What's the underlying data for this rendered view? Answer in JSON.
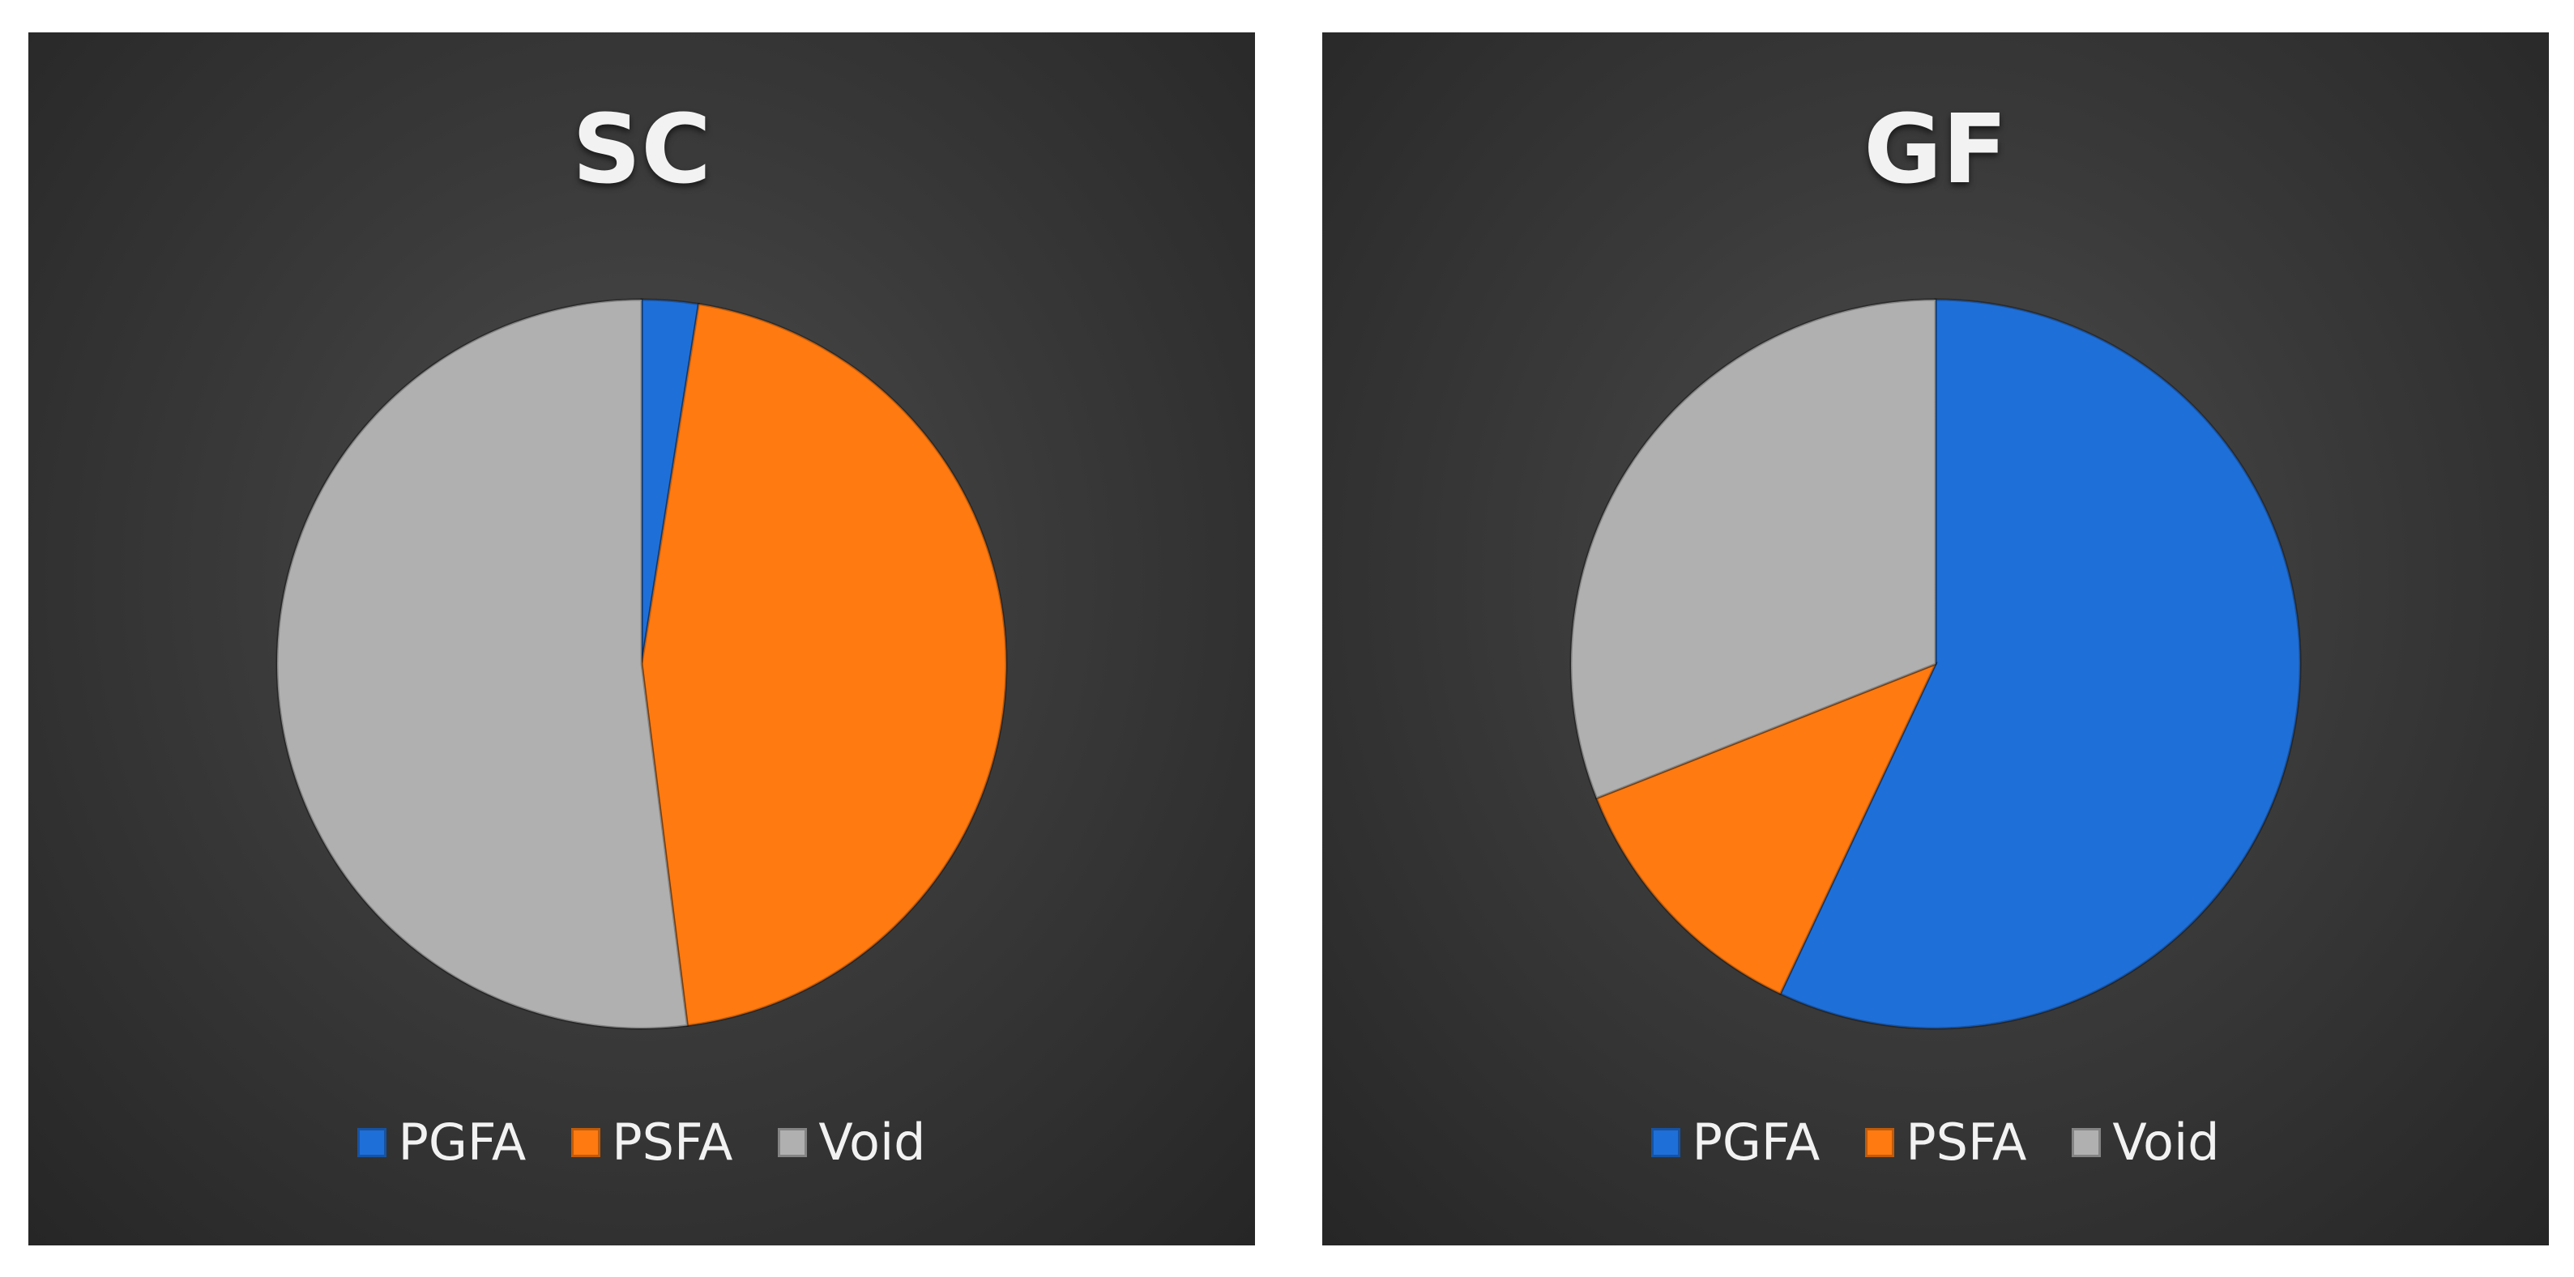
{
  "chart_data": [
    {
      "type": "pie",
      "title": "SC",
      "categories": [
        "PGFA",
        "PSFA",
        "Void"
      ],
      "values": [
        2.5,
        45.5,
        52
      ],
      "colors": [
        "#1f6fd8",
        "#ff7a10",
        "#b0b0b0"
      ],
      "legend_position": "bottom"
    },
    {
      "type": "pie",
      "title": "GF",
      "categories": [
        "PGFA",
        "PSFA",
        "Void"
      ],
      "values": [
        57,
        12,
        31
      ],
      "colors": [
        "#1f6fd8",
        "#ff7a10",
        "#b0b0b0"
      ],
      "legend_position": "bottom"
    }
  ]
}
